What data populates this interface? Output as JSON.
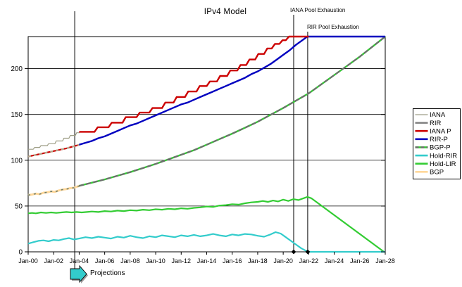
{
  "title": "IPv4 Model",
  "annotations": {
    "projections": {
      "label": "Projections",
      "year": 3.65,
      "arrow_color": "#33CCCC"
    },
    "iana_exhaustion": {
      "label": "IANA Pool Exhaustion",
      "year": 20.82
    },
    "rir_exhaustion": {
      "label": "RIR Pool Exhaustion",
      "year": 21.92
    }
  },
  "axes": {
    "x_tick_labels": [
      "Jan-00",
      "Jan-02",
      "Jan-04",
      "Jan-06",
      "Jan-08",
      "Jan-10",
      "Jan-12",
      "Jan-14",
      "Jan-16",
      "Jan-18",
      "Jan-20",
      "Jan-22",
      "Jan-24",
      "Jan-26",
      "Jan-28"
    ],
    "y_tick_labels": [
      "0",
      "50",
      "100",
      "150",
      "200"
    ]
  },
  "legend": {
    "entries": [
      {
        "label": "IANA",
        "color": "#9E9E86",
        "width": 1.2
      },
      {
        "label": "RIR",
        "color": "#808080",
        "width": 2.6
      },
      {
        "label": "IANA P",
        "color": "#CC0000",
        "width": 2.6
      },
      {
        "label": "RIR-P",
        "color": "#0000C0",
        "width": 2.6
      },
      {
        "label": "BGP-P",
        "color": "#33CC33",
        "width": 2.6,
        "overlay": {
          "color": "#6E6E6E",
          "dash": "5 3",
          "width": 2.4
        }
      },
      {
        "label": "Hold-RIR",
        "color": "#33CCCC",
        "width": 2.6
      },
      {
        "label": "Hold-LIR",
        "color": "#33CC33",
        "width": 2.6
      },
      {
        "label": "BGP",
        "color": "#FFD89B",
        "width": 2.6
      }
    ]
  },
  "chart_data": {
    "type": "line",
    "title": "IPv4 Model",
    "xlabel": "",
    "ylabel": "",
    "x_unit": "years since Jan-2000",
    "xlim": [
      0,
      28
    ],
    "ylim": [
      0,
      235
    ],
    "x_tick_years": [
      0,
      2,
      4,
      6,
      8,
      10,
      12,
      14,
      16,
      18,
      20,
      22,
      24,
      26,
      28
    ],
    "y_ticks": [
      0,
      50,
      100,
      150,
      200
    ],
    "grid": "horizontal",
    "legend_position": "right",
    "series": [
      {
        "name": "RIR",
        "color": "#CC0000",
        "width": 2.2,
        "overlay": {
          "color": "#B3AA8E",
          "dash": "4 4",
          "width": 2.2
        },
        "points": [
          [
            0,
            104
          ],
          [
            0.5,
            105.5
          ],
          [
            1,
            107
          ],
          [
            1.5,
            108.5
          ],
          [
            2,
            110
          ],
          [
            2.5,
            111.5
          ],
          [
            3,
            113
          ],
          [
            3.5,
            115
          ],
          [
            4.05,
            117
          ]
        ]
      },
      {
        "name": "IANA",
        "color": "#9E9E86",
        "width": 1.2,
        "points": [
          [
            0,
            112
          ],
          [
            0.4,
            112
          ],
          [
            0.5,
            114
          ],
          [
            0.9,
            114
          ],
          [
            1,
            116
          ],
          [
            1.5,
            116
          ],
          [
            1.6,
            118
          ],
          [
            2.1,
            118
          ],
          [
            2.2,
            121
          ],
          [
            2.7,
            121
          ],
          [
            2.8,
            124
          ],
          [
            3.2,
            124
          ],
          [
            3.3,
            127
          ],
          [
            3.7,
            127
          ],
          [
            3.8,
            130
          ],
          [
            4.05,
            130
          ]
        ]
      },
      {
        "name": "BGP",
        "color": "#FFD89B",
        "width": 3,
        "overlay": {
          "color": "#6E7E6E",
          "dash": "3 5",
          "width": 1.6
        },
        "points": [
          [
            0,
            62
          ],
          [
            0.3,
            62.5
          ],
          [
            0.6,
            63.5
          ],
          [
            0.9,
            63
          ],
          [
            1.2,
            64.5
          ],
          [
            1.5,
            65
          ],
          [
            1.8,
            66
          ],
          [
            2.1,
            65.5
          ],
          [
            2.4,
            67
          ],
          [
            2.7,
            68
          ],
          [
            3,
            68.5
          ],
          [
            3.3,
            69.5
          ],
          [
            3.6,
            70
          ],
          [
            3.8,
            71
          ],
          [
            4.05,
            72
          ]
        ]
      },
      {
        "name": "BGP-P",
        "color": "#33CC33",
        "width": 2.4,
        "overlay": {
          "color": "#6E6E6E",
          "dash": "7 3",
          "width": 2.2
        },
        "points": [
          [
            4,
            72
          ],
          [
            5,
            75.5
          ],
          [
            6,
            79
          ],
          [
            7,
            83
          ],
          [
            8,
            87
          ],
          [
            9,
            91.5
          ],
          [
            10,
            96
          ],
          [
            11,
            101
          ],
          [
            12,
            106
          ],
          [
            13,
            111
          ],
          [
            14,
            117
          ],
          [
            15,
            123
          ],
          [
            16,
            129
          ],
          [
            17,
            135.5
          ],
          [
            18,
            142
          ],
          [
            19,
            149.5
          ],
          [
            20,
            157
          ],
          [
            21,
            165
          ],
          [
            22,
            173
          ],
          [
            23,
            183
          ],
          [
            24,
            193
          ],
          [
            25,
            203
          ],
          [
            26,
            213
          ],
          [
            27,
            224
          ],
          [
            28,
            235
          ]
        ]
      },
      {
        "name": "Hold-LIR",
        "color": "#33CC33",
        "width": 2.2,
        "points": [
          [
            0,
            42
          ],
          [
            0.3,
            42.5
          ],
          [
            0.6,
            42
          ],
          [
            1,
            43
          ],
          [
            1.4,
            42.5
          ],
          [
            1.8,
            43
          ],
          [
            2.2,
            42.5
          ],
          [
            2.6,
            43
          ],
          [
            3,
            43.5
          ],
          [
            3.4,
            43
          ],
          [
            3.8,
            43.5
          ],
          [
            4.2,
            43
          ],
          [
            4.6,
            43.5
          ],
          [
            5,
            44
          ],
          [
            5.5,
            43.5
          ],
          [
            6,
            44.5
          ],
          [
            6.5,
            44
          ],
          [
            7,
            45
          ],
          [
            7.5,
            44.5
          ],
          [
            8,
            45.5
          ],
          [
            8.5,
            45
          ],
          [
            9,
            46
          ],
          [
            9.5,
            45.5
          ],
          [
            10,
            46.5
          ],
          [
            10.5,
            46
          ],
          [
            11,
            47
          ],
          [
            11.5,
            46.5
          ],
          [
            12,
            47.5
          ],
          [
            12.5,
            47
          ],
          [
            13,
            48
          ],
          [
            13.5,
            48.5
          ],
          [
            14,
            49.5
          ],
          [
            14.5,
            49
          ],
          [
            15,
            50.5
          ],
          [
            15.5,
            51
          ],
          [
            16,
            52
          ],
          [
            16.5,
            51.5
          ],
          [
            17,
            53
          ],
          [
            17.5,
            54
          ],
          [
            18,
            54.5
          ],
          [
            18.4,
            55.5
          ],
          [
            18.8,
            54.5
          ],
          [
            19.2,
            56
          ],
          [
            19.6,
            55
          ],
          [
            20,
            57
          ],
          [
            20.4,
            55.5
          ],
          [
            20.8,
            57.5
          ],
          [
            21.2,
            56.5
          ],
          [
            21.6,
            58.5
          ],
          [
            21.9,
            60
          ],
          [
            22.2,
            58.5
          ],
          [
            27.9,
            0
          ]
        ]
      },
      {
        "name": "Hold-RIR",
        "color": "#33CCCC",
        "width": 2.2,
        "points": [
          [
            0,
            9
          ],
          [
            0.4,
            10.5
          ],
          [
            0.8,
            12
          ],
          [
            1.2,
            12.5
          ],
          [
            1.6,
            11.5
          ],
          [
            2,
            13
          ],
          [
            2.4,
            12.5
          ],
          [
            2.8,
            14
          ],
          [
            3.2,
            15
          ],
          [
            3.6,
            13.5
          ],
          [
            4,
            14.5
          ],
          [
            4.5,
            16
          ],
          [
            5,
            15
          ],
          [
            5.5,
            16.5
          ],
          [
            6,
            15.5
          ],
          [
            6.5,
            14.5
          ],
          [
            7,
            16.5
          ],
          [
            7.5,
            15.5
          ],
          [
            8,
            17.5
          ],
          [
            8.5,
            16
          ],
          [
            9,
            15
          ],
          [
            9.5,
            17
          ],
          [
            10,
            16
          ],
          [
            10.5,
            18
          ],
          [
            11,
            17
          ],
          [
            11.5,
            16
          ],
          [
            12,
            18
          ],
          [
            12.5,
            17
          ],
          [
            13,
            18.5
          ],
          [
            13.5,
            17
          ],
          [
            14,
            18
          ],
          [
            14.5,
            19.5
          ],
          [
            15,
            18
          ],
          [
            15.5,
            17
          ],
          [
            16,
            19
          ],
          [
            16.5,
            18
          ],
          [
            17,
            19.5
          ],
          [
            17.5,
            19
          ],
          [
            18,
            17.5
          ],
          [
            18.5,
            16.5
          ],
          [
            19,
            19
          ],
          [
            19.4,
            21.5
          ],
          [
            19.8,
            20
          ],
          [
            20.2,
            16
          ],
          [
            20.6,
            12
          ],
          [
            21,
            8
          ],
          [
            21.4,
            4
          ],
          [
            21.8,
            1
          ],
          [
            22,
            0
          ],
          [
            28,
            0
          ]
        ]
      },
      {
        "name": "RIR-P",
        "color": "#0000C0",
        "width": 2.4,
        "points": [
          [
            4,
            117
          ],
          [
            4.5,
            119
          ],
          [
            5,
            121
          ],
          [
            5.5,
            124
          ],
          [
            6,
            126
          ],
          [
            6.5,
            129
          ],
          [
            7,
            132
          ],
          [
            7.5,
            135
          ],
          [
            8,
            138
          ],
          [
            8.5,
            140
          ],
          [
            9,
            143
          ],
          [
            9.5,
            146
          ],
          [
            10,
            149
          ],
          [
            10.5,
            152
          ],
          [
            11,
            155
          ],
          [
            11.5,
            158
          ],
          [
            12,
            161
          ],
          [
            12.5,
            163
          ],
          [
            13,
            166
          ],
          [
            13.5,
            169
          ],
          [
            14,
            172
          ],
          [
            14.5,
            175
          ],
          [
            15,
            178
          ],
          [
            15.5,
            181
          ],
          [
            16,
            184
          ],
          [
            16.5,
            187
          ],
          [
            17,
            190
          ],
          [
            17.5,
            194
          ],
          [
            18,
            197
          ],
          [
            18.5,
            201
          ],
          [
            19,
            205
          ],
          [
            19.5,
            210
          ],
          [
            20,
            215
          ],
          [
            20.5,
            220
          ],
          [
            21,
            226
          ],
          [
            21.5,
            231
          ],
          [
            21.9,
            235
          ],
          [
            28,
            235
          ]
        ]
      },
      {
        "name": "IANA P",
        "color": "#CC0000",
        "width": 2.4,
        "points": [
          [
            4,
            131
          ],
          [
            5.2,
            131
          ],
          [
            5.45,
            136
          ],
          [
            6.3,
            136
          ],
          [
            6.55,
            141
          ],
          [
            7.4,
            141
          ],
          [
            7.65,
            147
          ],
          [
            8.5,
            147
          ],
          [
            8.75,
            152
          ],
          [
            9.5,
            152
          ],
          [
            9.75,
            157
          ],
          [
            10.5,
            157
          ],
          [
            10.75,
            163
          ],
          [
            11.4,
            163
          ],
          [
            11.65,
            169
          ],
          [
            12.3,
            169
          ],
          [
            12.55,
            175
          ],
          [
            13.2,
            175
          ],
          [
            13.45,
            181
          ],
          [
            14,
            181
          ],
          [
            14.25,
            186
          ],
          [
            14.8,
            186
          ],
          [
            15.05,
            192
          ],
          [
            15.6,
            192
          ],
          [
            15.85,
            198
          ],
          [
            16.4,
            198
          ],
          [
            16.65,
            204
          ],
          [
            17.1,
            204
          ],
          [
            17.35,
            210
          ],
          [
            17.8,
            210
          ],
          [
            18.05,
            216
          ],
          [
            18.5,
            216
          ],
          [
            18.75,
            222
          ],
          [
            19.1,
            222
          ],
          [
            19.35,
            227
          ],
          [
            19.7,
            227
          ],
          [
            19.95,
            231
          ],
          [
            20.2,
            231
          ],
          [
            20.45,
            235
          ],
          [
            22,
            235
          ]
        ]
      }
    ]
  }
}
